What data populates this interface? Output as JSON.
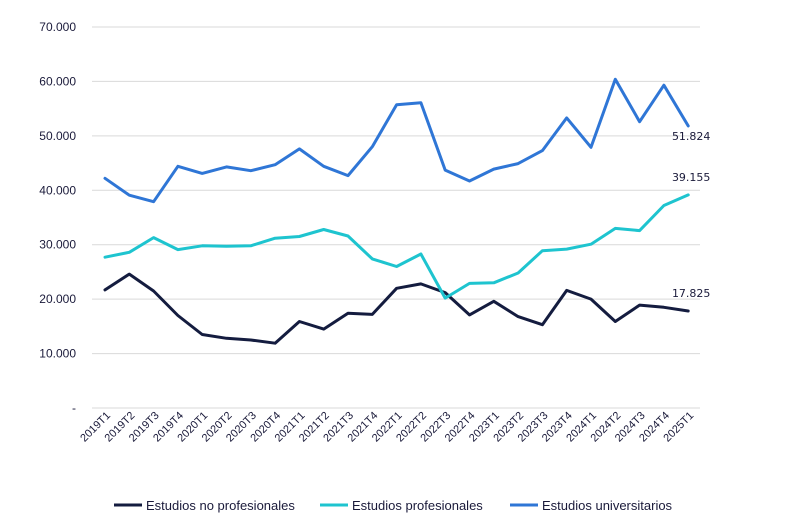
{
  "chart_data": {
    "type": "line",
    "title": "",
    "xlabel": "",
    "ylabel": "",
    "ylim": [
      0,
      70000
    ],
    "grid": true,
    "legend_position": "bottom",
    "y_ticks": [
      {
        "value": 0,
        "label": "-"
      },
      {
        "value": 10000,
        "label": "10.000"
      },
      {
        "value": 20000,
        "label": "20.000"
      },
      {
        "value": 30000,
        "label": "30.000"
      },
      {
        "value": 40000,
        "label": "40.000"
      },
      {
        "value": 50000,
        "label": "50.000"
      },
      {
        "value": 60000,
        "label": "60.000"
      },
      {
        "value": 70000,
        "label": "70.000"
      }
    ],
    "categories": [
      "2019T1",
      "2019T2",
      "2019T3",
      "2019T4",
      "2020T1",
      "2020T2",
      "2020T3",
      "2020T4",
      "2021T1",
      "2021T2",
      "2021T3",
      "2021T4",
      "2022T1",
      "2022T2",
      "2022T3",
      "2022T4",
      "2023T1",
      "2023T2",
      "2023T3",
      "2023T4",
      "2024T1",
      "2024T2",
      "2024T3",
      "2024T4",
      "2025T1"
    ],
    "series": [
      {
        "name": "Estudios no profesionales",
        "color": "#141c3f",
        "end_label": "17.825",
        "values": [
          21700,
          24600,
          21500,
          17000,
          13500,
          12800,
          12500,
          11900,
          15900,
          14500,
          17400,
          17200,
          22000,
          22800,
          21200,
          17100,
          19600,
          16800,
          15300,
          21600,
          20000,
          15900,
          18900,
          18500,
          17825
        ]
      },
      {
        "name": "Estudios profesionales",
        "color": "#1ec4cf",
        "end_label": "39.155",
        "values": [
          27700,
          28600,
          31300,
          29100,
          29800,
          29700,
          29800,
          31200,
          31500,
          32800,
          31600,
          27400,
          26000,
          28300,
          20200,
          22900,
          23000,
          24800,
          28900,
          29200,
          30100,
          33000,
          32600,
          37200,
          39155
        ]
      },
      {
        "name": "Estudios universitarios",
        "color": "#2f76d6",
        "end_label": "51.824",
        "values": [
          42200,
          39100,
          37900,
          44400,
          43100,
          44300,
          43600,
          44700,
          47600,
          44400,
          42700,
          48000,
          55700,
          56100,
          43700,
          41700,
          43900,
          44900,
          47300,
          53300,
          47900,
          60400,
          52600,
          59300,
          51824
        ]
      }
    ]
  }
}
